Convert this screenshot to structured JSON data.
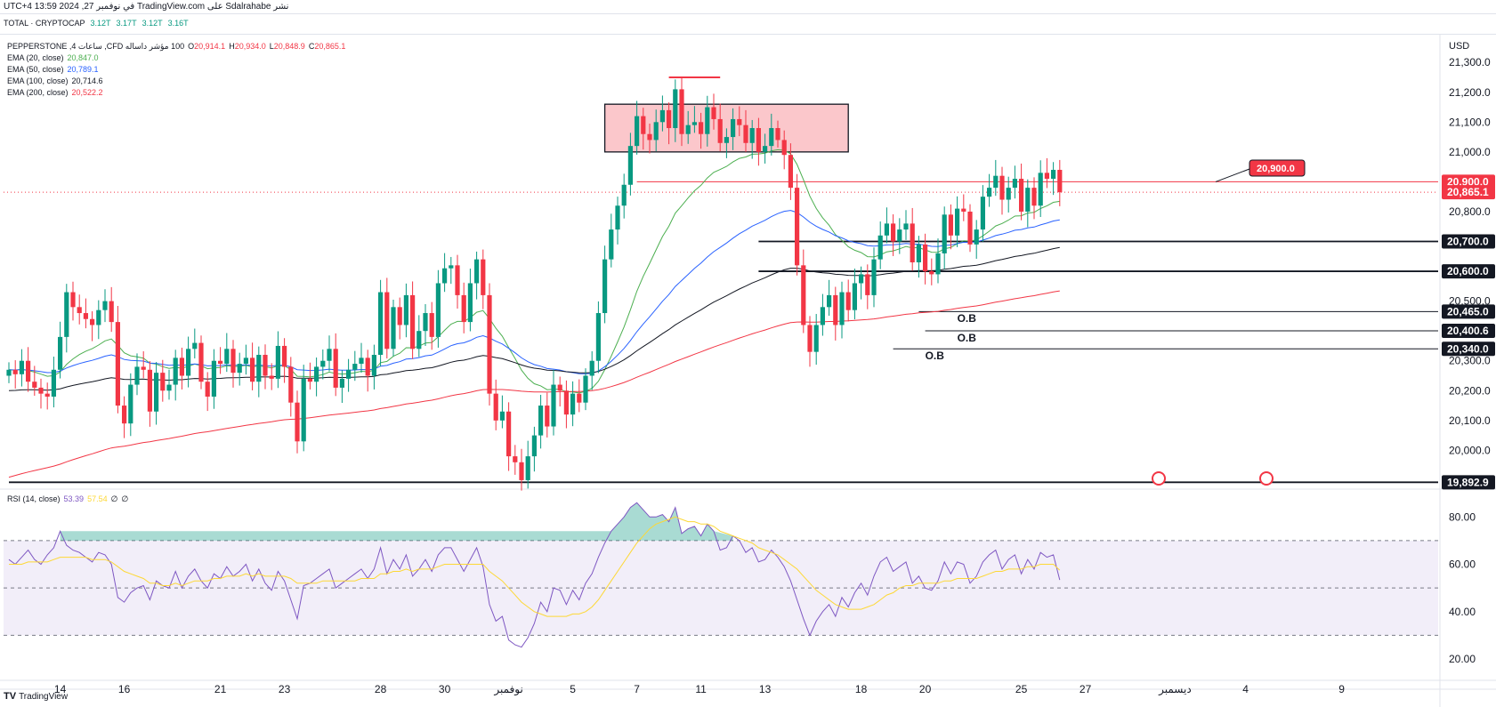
{
  "header": {
    "publish_line": "نشر Sdalrahabe على TradingView.com في نوفمبر 27, 2024 13:59 UTC+4"
  },
  "ticker": {
    "name": "TOTAL · CRYPTOCAP",
    "values": [
      "3.12T",
      "3.17T",
      "3.12T",
      "3.16T"
    ]
  },
  "legend": {
    "symbol": "100 مؤشر داساله CFD, ساعات 4, PEPPERSTONE",
    "ohlc": [
      {
        "label": "O",
        "value": "20,914.1"
      },
      {
        "label": "H",
        "value": "20,934.0"
      },
      {
        "label": "L",
        "value": "20,848.9"
      },
      {
        "label": "C",
        "value": "20,865.1"
      }
    ],
    "indicators": [
      {
        "name": "EMA (20, close)",
        "value": "20,847.0",
        "color": "#4caf50"
      },
      {
        "name": "EMA (50, close)",
        "value": "20,789.1",
        "color": "#2962ff"
      },
      {
        "name": "EMA (100, close)",
        "value": "20,714.6",
        "color": "#131722"
      },
      {
        "name": "EMA (200, close)",
        "value": "20,522.2",
        "color": "#f23645"
      }
    ]
  },
  "rsi_legend": {
    "name": "RSI (14, close)",
    "value1": "53.39",
    "value2": "57.54",
    "extra": [
      "∅",
      "∅"
    ]
  },
  "brand": "TradingView",
  "chart_data": {
    "type": "candlestick",
    "currency": "USD",
    "price_axis": {
      "ticks": [
        21300,
        21200,
        21100,
        21000,
        20800,
        20500,
        20200,
        20100,
        20000
      ],
      "tick_labels": [
        "21,300.0",
        "21,200.0",
        "21,100.0",
        "21,000.0",
        "20,800.0",
        "20,500.0",
        "20,200.0",
        "20,100.0",
        "20,000.0"
      ],
      "ylim": [
        19870,
        21390
      ]
    },
    "price_badges": [
      {
        "label": "20,900.0",
        "value": 20900,
        "style": "red"
      },
      {
        "label": "20,865.1",
        "value": 20865.1,
        "style": "red"
      },
      {
        "label": "20,700.0",
        "value": 20700,
        "style": "black"
      },
      {
        "label": "20,600.0",
        "value": 20600,
        "style": "black"
      },
      {
        "label": "20,465.0",
        "value": 20465,
        "style": "black"
      },
      {
        "label": "20,400.6",
        "value": 20400.6,
        "style": "black"
      },
      {
        "label": "20,340.0",
        "value": 20340,
        "style": "black"
      },
      {
        "label": "20,300.0",
        "value": 20300,
        "style": "plain"
      },
      {
        "label": "19,892.9",
        "value": 19892.9,
        "style": "black"
      }
    ],
    "callout": {
      "label": "20,900.0",
      "value": 20900
    },
    "supply_zone": {
      "from_bar": 93,
      "to_bar": 131,
      "low": 21000,
      "high": 21160
    },
    "horizontal_lines": [
      {
        "value": 20900,
        "from_bar": 98,
        "color": "#f23645"
      },
      {
        "value": 20700,
        "from_bar": 117,
        "color": "#131722"
      },
      {
        "value": 20600,
        "from_bar": 117,
        "color": "#131722"
      },
      {
        "value": 20465,
        "from_bar": 142,
        "color": "#131722"
      },
      {
        "value": 20400.6,
        "from_bar": 143,
        "color": "#131722"
      },
      {
        "value": 20340,
        "from_bar": 138,
        "color": "#131722"
      },
      {
        "value": 19892.9,
        "from_bar": 0,
        "color": "#131722"
      }
    ],
    "top_marker": {
      "value": 21250,
      "from_bar": 103,
      "to_bar": 111
    },
    "annotations": [
      {
        "text": "O.B",
        "bar": 148,
        "value": 20430
      },
      {
        "text": "O.B",
        "bar": 148,
        "value": 20365
      },
      {
        "text": "O.B",
        "bar": 143,
        "value": 20305
      }
    ],
    "x_axis": {
      "labels": [
        "14",
        "16",
        "21",
        "23",
        "28",
        "30",
        "نوفمبر",
        "5",
        "7",
        "11",
        "13",
        "18",
        "20",
        "25",
        "27",
        "ديسمبر",
        "4",
        "9"
      ],
      "label_bars": [
        8,
        18,
        33,
        43,
        58,
        68,
        78,
        88,
        98,
        108,
        118,
        133,
        143,
        158,
        168,
        182,
        193,
        208
      ]
    },
    "closes": [
      20270,
      20255,
      20300,
      20230,
      20210,
      20190,
      20180,
      20270,
      20380,
      20530,
      20480,
      20460,
      20440,
      20420,
      20470,
      20500,
      20430,
      20150,
      20090,
      20220,
      20280,
      20270,
      20130,
      20260,
      20200,
      20220,
      20310,
      20250,
      20340,
      20360,
      20230,
      20180,
      20300,
      20290,
      20340,
      20260,
      20290,
      20310,
      20230,
      20320,
      20250,
      20240,
      20350,
      20280,
      20160,
      20030,
      20240,
      20230,
      20280,
      20300,
      20340,
      20210,
      20240,
      20270,
      20290,
      20310,
      20250,
      20320,
      20530,
      20340,
      20480,
      20420,
      20520,
      20340,
      20400,
      20460,
      20380,
      20560,
      20610,
      20620,
      20520,
      20430,
      20560,
      20640,
      20520,
      20190,
      20100,
      20130,
      19980,
      19960,
      19900,
      19980,
      20050,
      20150,
      20080,
      20220,
      20200,
      20120,
      20190,
      20160,
      20250,
      20300,
      20460,
      20640,
      20740,
      20820,
      20890,
      21020,
      21120,
      21060,
      21040,
      21100,
      21140,
      21080,
      21210,
      21060,
      21090,
      21100,
      21060,
      21150,
      21110,
      21030,
      21050,
      21110,
      21090,
      21030,
      21080,
      21000,
      21020,
      21080,
      21040,
      20990,
      20880,
      20620,
      20420,
      20330,
      20420,
      20480,
      20520,
      20420,
      20530,
      20470,
      20560,
      20590,
      20520,
      20640,
      20720,
      20760,
      20700,
      20740,
      20760,
      20630,
      20690,
      20600,
      20590,
      20660,
      20790,
      20720,
      20810,
      20800,
      20690,
      20740,
      20850,
      20880,
      20920,
      20840,
      20880,
      20910,
      20800,
      20880,
      20820,
      20930,
      20910,
      20940,
      20865
    ],
    "rsi_axis": {
      "ticks": [
        80,
        60,
        40,
        20
      ],
      "tick_labels": [
        "80.00",
        "60.00",
        "40.00",
        "20.00"
      ],
      "band": [
        30,
        70
      ],
      "mid": 50
    },
    "rsi": [
      62,
      60,
      63,
      66,
      62,
      60,
      64,
      67,
      74,
      68,
      66,
      65,
      63,
      61,
      65,
      64,
      60,
      46,
      44,
      48,
      50,
      51,
      45,
      53,
      51,
      50,
      57,
      50,
      55,
      58,
      53,
      50,
      56,
      54,
      59,
      55,
      57,
      60,
      53,
      58,
      52,
      49,
      57,
      53,
      45,
      37,
      51,
      52,
      54,
      56,
      58,
      50,
      52,
      54,
      56,
      58,
      54,
      58,
      67,
      56,
      62,
      58,
      64,
      55,
      58,
      62,
      57,
      64,
      67,
      67,
      62,
      57,
      62,
      67,
      59,
      43,
      36,
      38,
      28,
      26,
      25,
      29,
      35,
      44,
      40,
      50,
      49,
      43,
      49,
      45,
      52,
      56,
      63,
      69,
      74,
      77,
      80,
      84,
      86,
      83,
      80,
      80,
      81,
      78,
      84,
      73,
      75,
      76,
      72,
      77,
      74,
      66,
      67,
      72,
      70,
      65,
      67,
      61,
      62,
      66,
      63,
      59,
      53,
      45,
      37,
      30,
      36,
      40,
      43,
      38,
      46,
      42,
      48,
      52,
      47,
      55,
      61,
      63,
      57,
      59,
      61,
      52,
      55,
      50,
      49,
      53,
      61,
      56,
      61,
      60,
      52,
      55,
      61,
      64,
      66,
      58,
      62,
      64,
      56,
      62,
      58,
      65,
      63,
      64,
      53.39
    ],
    "rsi_ma": [
      60,
      60,
      60,
      61,
      61,
      61,
      61,
      62,
      63,
      63,
      63,
      63,
      63,
      62,
      62,
      62,
      61,
      59,
      57,
      56,
      55,
      54,
      52,
      52,
      51,
      51,
      52,
      51,
      52,
      53,
      53,
      53,
      54,
      54,
      55,
      55,
      55,
      56,
      55,
      56,
      55,
      55,
      55,
      55,
      54,
      52,
      52,
      52,
      52,
      53,
      53,
      53,
      53,
      53,
      53,
      54,
      54,
      54,
      56,
      56,
      57,
      57,
      58,
      57,
      58,
      58,
      58,
      59,
      60,
      60,
      60,
      60,
      60,
      60,
      60,
      57,
      55,
      53,
      50,
      47,
      44,
      42,
      40,
      39,
      38,
      38,
      38,
      38,
      39,
      39,
      40,
      42,
      45,
      49,
      53,
      57,
      61,
      65,
      69,
      72,
      75,
      77,
      78,
      79,
      80,
      79,
      78,
      78,
      77,
      77,
      76,
      74,
      73,
      72,
      71,
      70,
      69,
      67,
      66,
      65,
      64,
      62,
      60,
      58,
      55,
      52,
      49,
      47,
      45,
      43,
      42,
      41,
      41,
      41,
      42,
      43,
      45,
      47,
      48,
      50,
      51,
      51,
      52,
      52,
      52,
      52,
      53,
      53,
      54,
      54,
      54,
      54,
      55,
      56,
      57,
      57,
      58,
      58,
      58,
      59,
      59,
      60,
      60,
      60,
      57.54
    ]
  }
}
